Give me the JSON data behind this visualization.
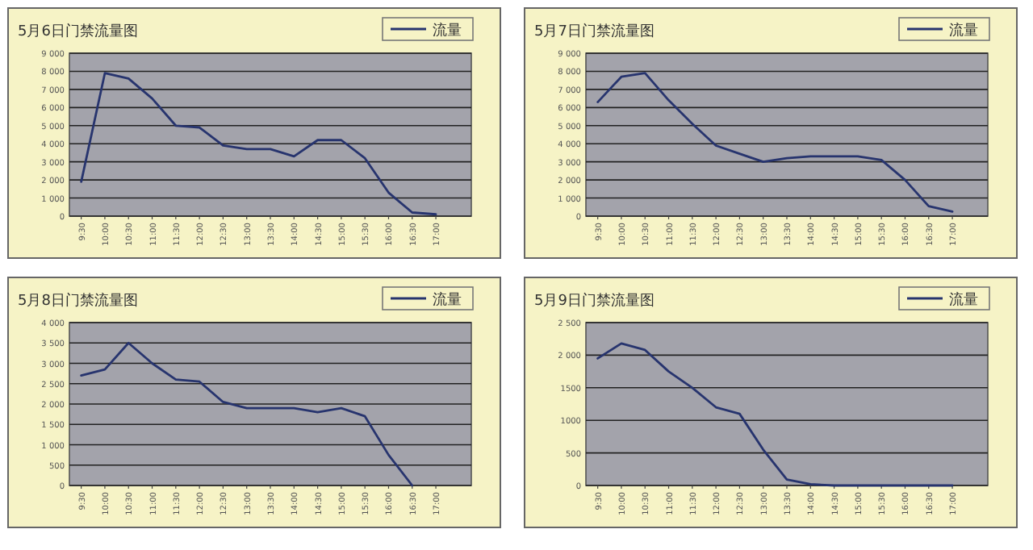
{
  "chart_data": [
    {
      "type": "line",
      "title": "5月6日门禁流量图",
      "categories": [
        "9:30",
        "10:00",
        "10:30",
        "11:00",
        "11:30",
        "12:00",
        "12:30",
        "13:00",
        "13:30",
        "14:00",
        "14:30",
        "15:00",
        "15:30",
        "16:00",
        "16:30",
        "17:00"
      ],
      "series": [
        {
          "name": "流量",
          "color": "#27346e",
          "values": [
            1900,
            7900,
            7600,
            6500,
            5000,
            4900,
            3900,
            3700,
            3700,
            3300,
            4200,
            4200,
            3200,
            1300,
            200,
            100
          ]
        }
      ],
      "ylim": [
        0,
        9000
      ],
      "yticks": [
        0,
        {
          "value": 1000,
          "label": "1 000"
        },
        {
          "value": 2000,
          "label": "2 000"
        },
        {
          "value": 3000,
          "label": "3 000"
        },
        {
          "value": 4000,
          "label": "4 000"
        },
        {
          "value": 5000,
          "label": "5 000"
        },
        {
          "value": 6000,
          "label": "6 000"
        },
        {
          "value": 7000,
          "label": "7 000"
        },
        {
          "value": 8000,
          "label": "8 000"
        },
        {
          "value": 9000,
          "label": "9 000"
        }
      ],
      "grid": "y",
      "legend": "top right"
    },
    {
      "type": "line",
      "title": "5月7日门禁流量图",
      "categories": [
        "9:30",
        "10:00",
        "10:30",
        "11:00",
        "11:30",
        "12:00",
        "12:30",
        "13:00",
        "13:30",
        "14:00",
        "14:30",
        "15:00",
        "15:30",
        "16:00",
        "16:30",
        "17:00"
      ],
      "series": [
        {
          "name": "流量",
          "color": "#27346e",
          "values": [
            6300,
            7700,
            7900,
            6400,
            5100,
            3900,
            3450,
            3000,
            3200,
            3300,
            3300,
            3300,
            3100,
            2000,
            550,
            250
          ]
        }
      ],
      "ylim": [
        0,
        9000
      ],
      "yticks": [
        0,
        {
          "value": 1000,
          "label": "1 000"
        },
        {
          "value": 2000,
          "label": "2 000"
        },
        {
          "value": 3000,
          "label": "3 000"
        },
        {
          "value": 4000,
          "label": "4 000"
        },
        {
          "value": 5000,
          "label": "5 000"
        },
        {
          "value": 6000,
          "label": "6 000"
        },
        {
          "value": 7000,
          "label": "7 000"
        },
        {
          "value": 8000,
          "label": "8 000"
        },
        {
          "value": 9000,
          "label": "9 000"
        }
      ],
      "grid": "y",
      "legend": "top right"
    },
    {
      "type": "line",
      "title": "5月8日门禁流量图",
      "categories": [
        "9:30",
        "10:00",
        "10:30",
        "11:00",
        "11:30",
        "12:00",
        "12:30",
        "13:00",
        "13:30",
        "14:00",
        "14:30",
        "15:00",
        "15:30",
        "16:00",
        "16:30",
        "17:00"
      ],
      "series": [
        {
          "name": "流量",
          "color": "#27346e",
          "values": [
            2700,
            2850,
            3500,
            3000,
            2600,
            2550,
            2050,
            1900,
            1900,
            1900,
            1800,
            1900,
            1700,
            750,
            0,
            null
          ]
        }
      ],
      "ylim": [
        0,
        4000
      ],
      "yticks": [
        0,
        500,
        {
          "value": 1000,
          "label": "1 000"
        },
        {
          "value": 1500,
          "label": "1 500"
        },
        {
          "value": 2000,
          "label": "2 000"
        },
        {
          "value": 2500,
          "label": "2 500"
        },
        {
          "value": 3000,
          "label": "3 000"
        },
        {
          "value": 3500,
          "label": "3 500"
        },
        {
          "value": 4000,
          "label": "4 000"
        }
      ],
      "grid": "y",
      "legend": "top right"
    },
    {
      "type": "line",
      "title": "5月9日门禁流量图",
      "categories": [
        "9:30",
        "10:00",
        "10:30",
        "11:00",
        "11:30",
        "12:00",
        "12:30",
        "13:00",
        "13:30",
        "14:00",
        "14:30",
        "15:00",
        "15:30",
        "16:00",
        "16:30",
        "17:00"
      ],
      "series": [
        {
          "name": "流量",
          "color": "#27346e",
          "values": [
            1950,
            2180,
            2080,
            1750,
            1500,
            1200,
            1100,
            550,
            90,
            20,
            0,
            0,
            0,
            0,
            0,
            0
          ]
        }
      ],
      "ylim": [
        0,
        2500
      ],
      "yticks": [
        0,
        500,
        1000,
        1500,
        {
          "value": 2000,
          "label": "2 000"
        },
        {
          "value": 2500,
          "label": "2 500"
        }
      ],
      "grid": "y",
      "legend": "top right"
    }
  ]
}
